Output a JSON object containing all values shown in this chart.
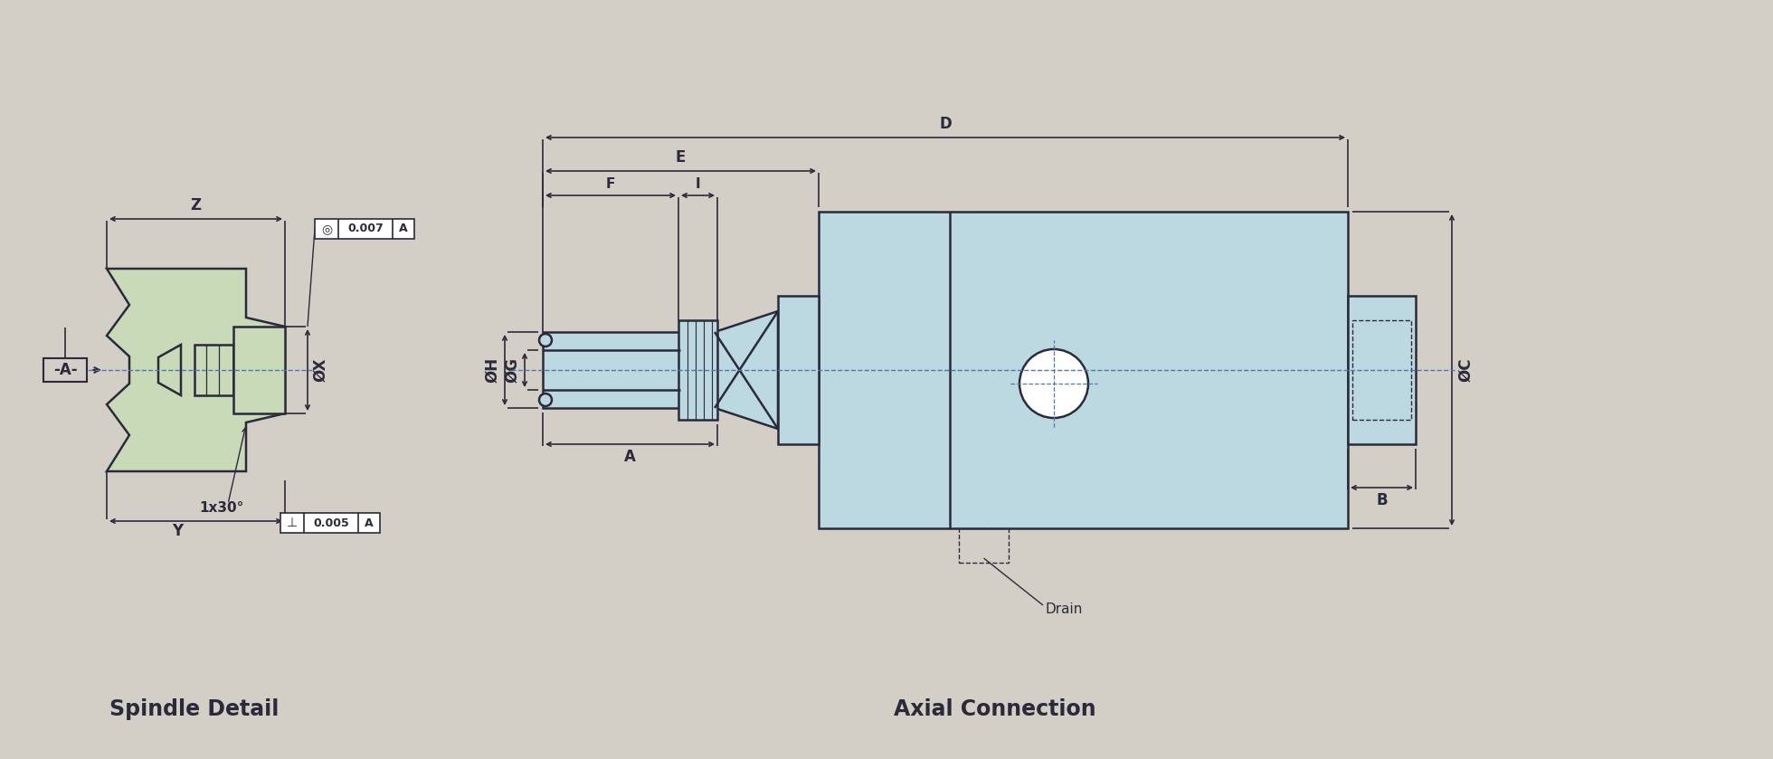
{
  "bg_color": "#d3cfc7",
  "line_color": "#2a2a3a",
  "spindle_fill": "#c8dab8",
  "axial_fill": "#bcd8e0",
  "title_fontsize": 17,
  "label_fontsize": 12,
  "anno_fontsize": 11,
  "small_fontsize": 11,
  "spindle_title": "Spindle Detail",
  "axial_title": "Axial Connection",
  "label_A_box": "-A-",
  "dim_Z": "Z",
  "dim_X": "ØX",
  "dim_Y": "Y",
  "dim_chamfer": "1x30°",
  "dim_D": "D",
  "dim_E": "E",
  "dim_F": "F",
  "dim_I": "I",
  "dim_H": "ØH",
  "dim_A": "A",
  "dim_G": "ØG",
  "dim_C": "ØC",
  "dim_B": "B",
  "drain_label": "Drain",
  "tol1_sym": "◎",
  "tol1_val": "0.007",
  "tol1_ref": "A",
  "tol2_sym": "⊥",
  "tol2_val": "0.005",
  "tol2_ref": "A"
}
